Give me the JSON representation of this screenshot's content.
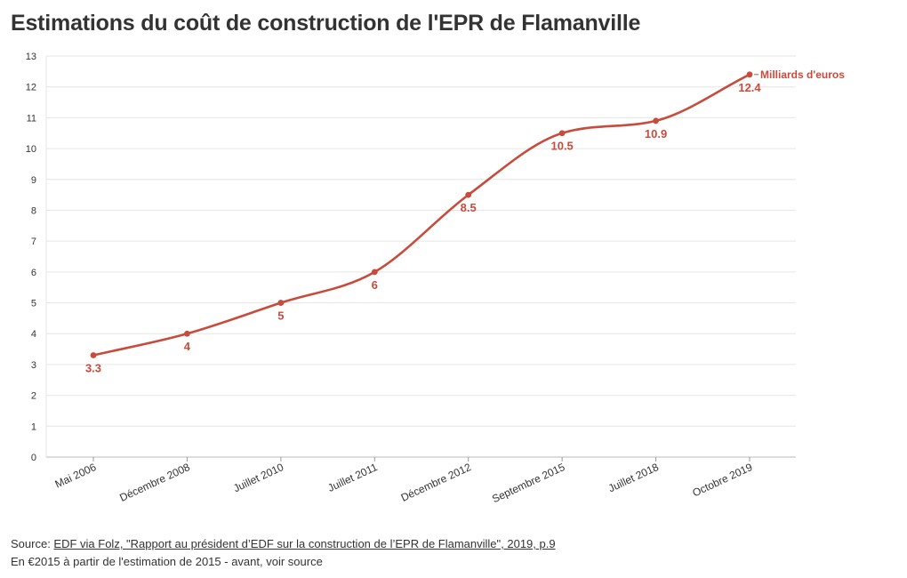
{
  "title": "Estimations du coût de construction de l'EPR de Flamanville",
  "chart_data": {
    "type": "line",
    "title": "Estimations du coût de construction de l'EPR de Flamanville",
    "categories": [
      "Mai 2006",
      "Décembre 2008",
      "Juillet 2010",
      "Juillet 2011",
      "Décembre 2012",
      "Septembre 2015",
      "Juillet 2018",
      "Octobre 2019"
    ],
    "series": [
      {
        "name": "Milliards d'euros",
        "values": [
          3.3,
          4,
          5,
          6,
          8.5,
          10.5,
          10.9,
          12.4
        ],
        "color": "#c84b3c"
      }
    ],
    "value_labels": [
      "3.3",
      "4",
      "5",
      "6",
      "8.5",
      "10.5",
      "10.9",
      "12.4"
    ],
    "ylim": [
      0,
      13
    ],
    "yticks": [
      "0",
      "1",
      "2",
      "3",
      "4",
      "5",
      "6",
      "7",
      "8",
      "9",
      "10",
      "11",
      "12",
      "13"
    ],
    "grid": true,
    "xlabel": "",
    "ylabel": "",
    "series_label": "Milliards d'euros"
  },
  "footer": {
    "source_prefix": "Source: ",
    "source_link": "EDF via Folz, \"Rapport au président d’EDF sur la construction de l’EPR de Flamanville\", 2019, p.9",
    "note": "En €2015 à partir de l'estimation de 2015 - avant, voir source"
  }
}
